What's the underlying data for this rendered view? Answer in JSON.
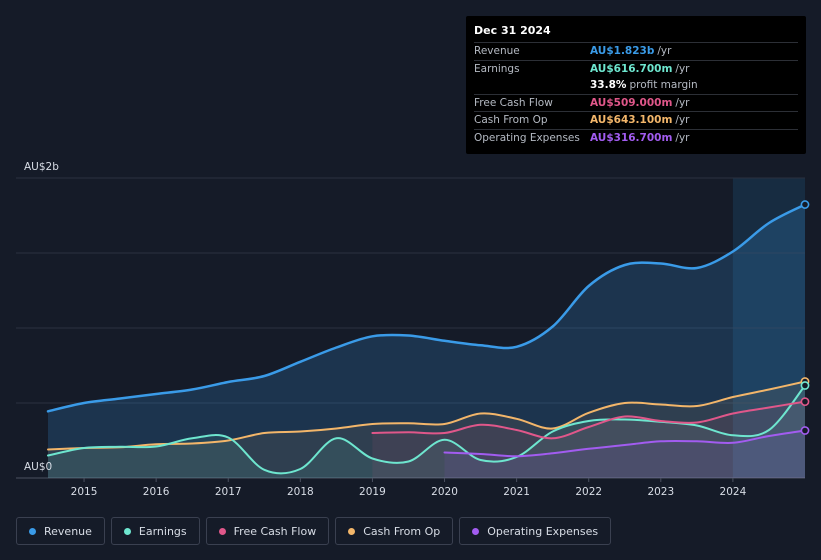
{
  "tooltip": {
    "date": "Dec 31 2024",
    "rows": [
      {
        "label": "Revenue",
        "value": "AU$1.823b",
        "unit": "/yr",
        "color": "#3a9be8"
      },
      {
        "label": "Earnings",
        "value": "AU$616.700m",
        "unit": "/yr",
        "color": "#6ee6cf"
      },
      {
        "label": "",
        "value": "33.8%",
        "unit": "profit margin",
        "color": "#ffffff"
      },
      {
        "label": "Free Cash Flow",
        "value": "AU$509.000m",
        "unit": "/yr",
        "color": "#e0578a"
      },
      {
        "label": "Cash From Op",
        "value": "AU$643.100m",
        "unit": "/yr",
        "color": "#f3b66a"
      },
      {
        "label": "Operating Expenses",
        "value": "AU$316.700m",
        "unit": "/yr",
        "color": "#a25cf0"
      }
    ]
  },
  "legend": [
    {
      "label": "Revenue",
      "color": "#3a9be8"
    },
    {
      "label": "Earnings",
      "color": "#6ee6cf"
    },
    {
      "label": "Free Cash Flow",
      "color": "#e0578a"
    },
    {
      "label": "Cash From Op",
      "color": "#f3b66a"
    },
    {
      "label": "Operating Expenses",
      "color": "#a25cf0"
    }
  ],
  "chart_data": {
    "type": "line",
    "title": "",
    "xlabel": "",
    "ylabel": "",
    "y_top_label": "AU$2b",
    "y_bottom_label": "AU$0",
    "ylim": [
      0,
      2000
    ],
    "xlim": [
      2014.5,
      2025.0
    ],
    "forecast_shade_start": 2024.0,
    "x_ticks": [
      2015,
      2016,
      2017,
      2018,
      2019,
      2020,
      2021,
      2022,
      2023,
      2024
    ],
    "x_tick_labels": [
      "2015",
      "2016",
      "2017",
      "2018",
      "2019",
      "2020",
      "2021",
      "2022",
      "2023",
      "2024"
    ],
    "series": [
      {
        "name": "Revenue",
        "color": "#3a9be8",
        "fill": true,
        "width": 2.5,
        "points": [
          [
            2014.5,
            445
          ],
          [
            2015,
            500
          ],
          [
            2015.5,
            530
          ],
          [
            2016,
            560
          ],
          [
            2016.5,
            590
          ],
          [
            2017,
            640
          ],
          [
            2017.5,
            680
          ],
          [
            2018,
            775
          ],
          [
            2018.5,
            870
          ],
          [
            2019,
            945
          ],
          [
            2019.5,
            950
          ],
          [
            2020,
            915
          ],
          [
            2020.5,
            885
          ],
          [
            2021,
            875
          ],
          [
            2021.5,
            1010
          ],
          [
            2022,
            1280
          ],
          [
            2022.5,
            1420
          ],
          [
            2023,
            1430
          ],
          [
            2023.5,
            1400
          ],
          [
            2024,
            1510
          ],
          [
            2024.5,
            1700
          ],
          [
            2025,
            1823
          ]
        ]
      },
      {
        "name": "Cash From Op",
        "color": "#f3b66a",
        "fill": false,
        "width": 2,
        "points": [
          [
            2014.5,
            190
          ],
          [
            2015,
            200
          ],
          [
            2015.5,
            205
          ],
          [
            2016,
            225
          ],
          [
            2016.5,
            230
          ],
          [
            2017,
            250
          ],
          [
            2017.5,
            300
          ],
          [
            2018,
            310
          ],
          [
            2018.5,
            330
          ],
          [
            2019,
            360
          ],
          [
            2019.5,
            365
          ],
          [
            2020,
            360
          ],
          [
            2020.5,
            430
          ],
          [
            2021,
            395
          ],
          [
            2021.5,
            330
          ],
          [
            2022,
            435
          ],
          [
            2022.5,
            500
          ],
          [
            2023,
            490
          ],
          [
            2023.5,
            480
          ],
          [
            2024,
            540
          ],
          [
            2024.5,
            590
          ],
          [
            2025,
            643.1
          ]
        ]
      },
      {
        "name": "Earnings",
        "color": "#6ee6cf",
        "fill": false,
        "width": 2,
        "points": [
          [
            2014.5,
            150
          ],
          [
            2015,
            200
          ],
          [
            2015.5,
            208
          ],
          [
            2016,
            210
          ],
          [
            2016.5,
            265
          ],
          [
            2017,
            270
          ],
          [
            2017.5,
            55
          ],
          [
            2018,
            60
          ],
          [
            2018.5,
            265
          ],
          [
            2019,
            130
          ],
          [
            2019.5,
            110
          ],
          [
            2020,
            255
          ],
          [
            2020.5,
            120
          ],
          [
            2021,
            140
          ],
          [
            2021.5,
            310
          ],
          [
            2022,
            380
          ],
          [
            2022.5,
            390
          ],
          [
            2023,
            375
          ],
          [
            2023.5,
            350
          ],
          [
            2024,
            285
          ],
          [
            2024.5,
            320
          ],
          [
            2025,
            616.7
          ]
        ]
      },
      {
        "name": "Free Cash Flow",
        "color": "#e0578a",
        "fill": false,
        "width": 2,
        "points": [
          [
            2019,
            300
          ],
          [
            2019.5,
            305
          ],
          [
            2020,
            300
          ],
          [
            2020.5,
            355
          ],
          [
            2021,
            320
          ],
          [
            2021.5,
            265
          ],
          [
            2022,
            340
          ],
          [
            2022.5,
            410
          ],
          [
            2023,
            380
          ],
          [
            2023.5,
            370
          ],
          [
            2024,
            430
          ],
          [
            2024.5,
            470
          ],
          [
            2025,
            509
          ]
        ]
      },
      {
        "name": "Operating Expenses",
        "color": "#a25cf0",
        "fill": false,
        "width": 2,
        "points": [
          [
            2020,
            170
          ],
          [
            2020.5,
            160
          ],
          [
            2021,
            145
          ],
          [
            2021.5,
            165
          ],
          [
            2022,
            195
          ],
          [
            2022.5,
            220
          ],
          [
            2023,
            245
          ],
          [
            2023.5,
            245
          ],
          [
            2024,
            235
          ],
          [
            2024.5,
            280
          ],
          [
            2025,
            316.7
          ]
        ]
      }
    ]
  }
}
